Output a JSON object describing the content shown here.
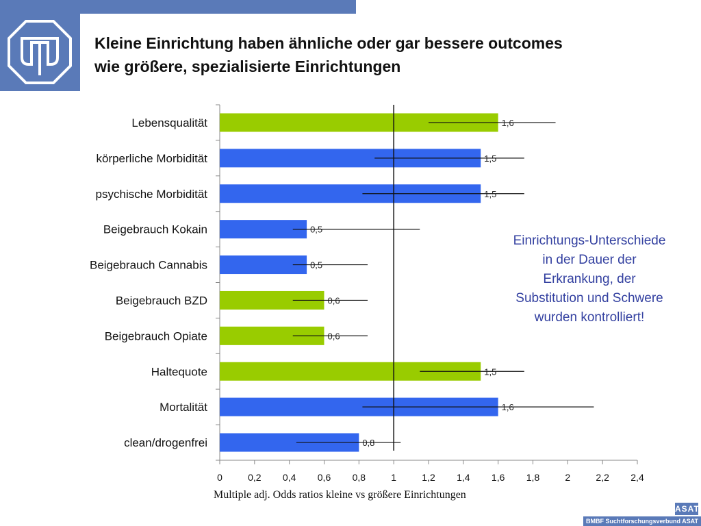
{
  "header": {
    "title_line1": "Kleine Einrichtung haben ähnliche oder gar bessere outcomes",
    "title_line2": "wie größere, spezialisierte Einrichtungen"
  },
  "colors": {
    "green": "#99cc00",
    "blue": "#3366ee",
    "brand": "#5a7ab8",
    "note": "#3340a0"
  },
  "chart_data": {
    "type": "bar",
    "orientation": "horizontal",
    "title": "",
    "xlabel": "Multiple adj. Odds ratios kleine vs größere Einrichtungen",
    "ylabel": "",
    "xlim": [
      0,
      2.4
    ],
    "xticks": [
      0,
      0.2,
      0.4,
      0.6,
      0.8,
      1,
      1.2,
      1.4,
      1.6,
      1.8,
      2,
      2.2,
      2.4
    ],
    "xtick_labels": [
      "0",
      "0,2",
      "0,4",
      "0,6",
      "0,8",
      "1",
      "1,2",
      "1,4",
      "1,6",
      "1,8",
      "2",
      "2,2",
      "2,4"
    ],
    "reference_line": 1,
    "grid": false,
    "categories": [
      "Lebensqualität",
      "körperliche Morbidität",
      "psychische Morbidität",
      "Beigebrauch Kokain",
      "Beigebrauch Cannabis",
      "Beigebrauch BZD",
      "Beigebrauch Opiate",
      "Haltequote",
      "Mortalität",
      "clean/drogenfrei"
    ],
    "values": [
      1.6,
      1.5,
      1.5,
      0.5,
      0.5,
      0.6,
      0.6,
      1.5,
      1.6,
      0.8
    ],
    "value_labels": [
      "1,6",
      "1,5",
      "1,5",
      "0,5",
      "0,5",
      "0,6",
      "0,6",
      "1,5",
      "1,6",
      "0,8"
    ],
    "ci_low": [
      1.2,
      0.89,
      0.82,
      0.42,
      0.42,
      0.42,
      0.42,
      1.15,
      0.82,
      0.44
    ],
    "ci_high": [
      1.93,
      1.75,
      1.75,
      1.15,
      0.85,
      0.85,
      0.85,
      1.75,
      2.15,
      1.04
    ],
    "bar_colors": [
      "green",
      "blue",
      "blue",
      "blue",
      "blue",
      "green",
      "green",
      "green",
      "blue",
      "blue"
    ]
  },
  "note": {
    "line1": "Einrichtungs-Unterschiede",
    "line2": "in der Dauer der",
    "line3": "Erkrankung, der",
    "line4": "Substitution und Schwere",
    "line5": "wurden kontrolliert!"
  },
  "footer": {
    "text": "BMBF Suchtforschungsverbund ASAT",
    "logo": "ASAT"
  }
}
